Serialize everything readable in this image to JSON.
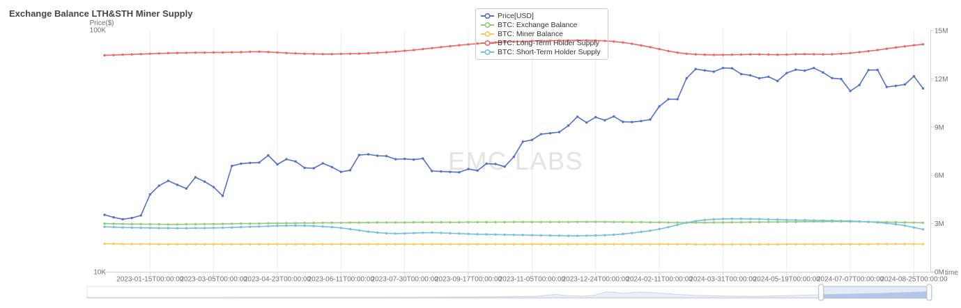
{
  "title": "Exchange Balance LTH&STH Miner Supply",
  "watermark": "EMC LABS",
  "left_axis": {
    "name": "Price($)",
    "scale": "log",
    "labels": [
      {
        "text": "100K",
        "value": 100000
      },
      {
        "text": "10K",
        "value": 10000
      }
    ]
  },
  "right_axis": {
    "labels": [
      "15M",
      "12M",
      "9M",
      "6M",
      "3M",
      "0M"
    ],
    "values": [
      15,
      12,
      9,
      6,
      3,
      0
    ],
    "max": 15
  },
  "x_axis": {
    "name": "time",
    "tick_labels": [
      "2023-01-15T00:00:00",
      "2023-03-05T00:00:00",
      "2023-04-23T00:00:00",
      "2023-06-11T00:00:00",
      "2023-07-30T00:00:00",
      "2023-09-17T00:00:00",
      "2023-11-05T00:00:00",
      "2023-12-24T00:00:00",
      "2024-02-11T00:00:00",
      "2024-03-31T00:00:00",
      "2024-05-19T00:00:00",
      "2024-07-07T00:00:00",
      "2024-08-25T00:00:00"
    ],
    "tick_indices": [
      5,
      12,
      19,
      26,
      33,
      40,
      47,
      54,
      61,
      68,
      75,
      82,
      89
    ]
  },
  "chart_data": {
    "type": "line",
    "x_unit": "week",
    "x_range": [
      "2022-12-11",
      "2024-09-01"
    ],
    "point_count": 91,
    "grid": "vertical-only",
    "legend_position": "top-center",
    "series": [
      {
        "name": "Price[USD]",
        "color": "#5470c6",
        "axis": "left",
        "unit": "USD",
        "values": [
          17200,
          16800,
          16500,
          16700,
          17100,
          20900,
          22700,
          23800,
          22900,
          22100,
          24600,
          23600,
          22400,
          20600,
          27400,
          28000,
          28200,
          28300,
          30300,
          27800,
          29200,
          28600,
          26900,
          26800,
          28100,
          27100,
          25900,
          26300,
          30400,
          30600,
          30200,
          30100,
          29200,
          29300,
          29100,
          29400,
          26100,
          26000,
          25900,
          25800,
          26600,
          26200,
          28000,
          27900,
          27200,
          29900,
          34500,
          35100,
          37100,
          37400,
          37800,
          40200,
          43800,
          41400,
          43600,
          42300,
          43900,
          41700,
          41600,
          42000,
          42600,
          48300,
          51700,
          51700,
          63100,
          68900,
          68000,
          67200,
          69600,
          69400,
          65700,
          64900,
          63100,
          64000,
          61500,
          66300,
          68500,
          67800,
          69600,
          66700,
          63200,
          62700,
          55900,
          59200,
          68200,
          68300,
          58100,
          58700,
          59500,
          64300,
          57300
        ]
      },
      {
        "name": "BTC: Exchange Balance",
        "color": "#91cc75",
        "axis": "right",
        "unit": "M BTC",
        "values": [
          3.0,
          2.99,
          2.98,
          2.97,
          2.97,
          2.96,
          2.96,
          2.95,
          2.95,
          2.96,
          2.96,
          2.97,
          2.97,
          2.98,
          2.99,
          3.0,
          3.0,
          3.01,
          3.02,
          3.02,
          3.03,
          3.03,
          3.04,
          3.04,
          3.05,
          3.05,
          3.05,
          3.06,
          3.06,
          3.06,
          3.07,
          3.07,
          3.07,
          3.07,
          3.08,
          3.08,
          3.08,
          3.08,
          3.08,
          3.08,
          3.09,
          3.09,
          3.09,
          3.09,
          3.09,
          3.1,
          3.1,
          3.1,
          3.1,
          3.1,
          3.1,
          3.1,
          3.11,
          3.11,
          3.11,
          3.11,
          3.1,
          3.1,
          3.09,
          3.09,
          3.08,
          3.08,
          3.07,
          3.07,
          3.06,
          3.06,
          3.06,
          3.07,
          3.07,
          3.08,
          3.08,
          3.09,
          3.09,
          3.1,
          3.1,
          3.11,
          3.11,
          3.12,
          3.12,
          3.12,
          3.13,
          3.13,
          3.12,
          3.12,
          3.11,
          3.1,
          3.09,
          3.08,
          3.07,
          3.06,
          3.05
        ]
      },
      {
        "name": "BTC: Miner Balance",
        "color": "#fac858",
        "axis": "right",
        "unit": "M BTC",
        "values": [
          1.74,
          1.74,
          1.73,
          1.73,
          1.73,
          1.73,
          1.72,
          1.72,
          1.72,
          1.72,
          1.72,
          1.72,
          1.72,
          1.72,
          1.72,
          1.72,
          1.72,
          1.72,
          1.72,
          1.72,
          1.72,
          1.72,
          1.72,
          1.72,
          1.72,
          1.72,
          1.72,
          1.72,
          1.72,
          1.72,
          1.72,
          1.72,
          1.72,
          1.72,
          1.72,
          1.72,
          1.72,
          1.72,
          1.72,
          1.72,
          1.72,
          1.72,
          1.72,
          1.72,
          1.72,
          1.72,
          1.72,
          1.72,
          1.72,
          1.72,
          1.72,
          1.72,
          1.72,
          1.72,
          1.72,
          1.72,
          1.72,
          1.72,
          1.72,
          1.72,
          1.72,
          1.72,
          1.72,
          1.72,
          1.72,
          1.71,
          1.71,
          1.71,
          1.71,
          1.71,
          1.71,
          1.71,
          1.71,
          1.71,
          1.71,
          1.72,
          1.72,
          1.72,
          1.72,
          1.72,
          1.72,
          1.72,
          1.72,
          1.72,
          1.72,
          1.73,
          1.73,
          1.73,
          1.73,
          1.73,
          1.73
        ]
      },
      {
        "name": "BTC: Long-Term Holder Supply",
        "color": "#ee6666",
        "axis": "right",
        "unit": "M BTC",
        "values": [
          13.46,
          13.48,
          13.5,
          13.52,
          13.54,
          13.56,
          13.58,
          13.6,
          13.61,
          13.62,
          13.63,
          13.63,
          13.64,
          13.64,
          13.65,
          13.66,
          13.68,
          13.69,
          13.67,
          13.64,
          13.61,
          13.58,
          13.56,
          13.55,
          13.54,
          13.54,
          13.55,
          13.56,
          13.57,
          13.59,
          13.62,
          13.65,
          13.69,
          13.74,
          13.79,
          13.85,
          13.91,
          13.97,
          14.03,
          14.09,
          14.14,
          14.19,
          14.23,
          14.26,
          14.29,
          14.31,
          14.33,
          14.35,
          14.36,
          14.37,
          14.38,
          14.38,
          14.39,
          14.39,
          14.38,
          14.36,
          14.32,
          14.26,
          14.18,
          14.08,
          13.97,
          13.85,
          13.73,
          13.63,
          13.56,
          13.52,
          13.5,
          13.49,
          13.49,
          13.5,
          13.51,
          13.52,
          13.52,
          13.51,
          13.5,
          13.51,
          13.53,
          13.54,
          13.53,
          13.52,
          13.53,
          13.56,
          13.6,
          13.66,
          13.72,
          13.79,
          13.87,
          13.95,
          14.02,
          14.09,
          14.15
        ]
      },
      {
        "name": "BTC: Short-Term Holder Supply",
        "color": "#73c0de",
        "axis": "right",
        "unit": "M BTC",
        "values": [
          2.8,
          2.78,
          2.76,
          2.75,
          2.74,
          2.73,
          2.72,
          2.72,
          2.71,
          2.71,
          2.72,
          2.72,
          2.73,
          2.74,
          2.76,
          2.78,
          2.8,
          2.82,
          2.84,
          2.86,
          2.87,
          2.88,
          2.87,
          2.85,
          2.82,
          2.78,
          2.73,
          2.66,
          2.58,
          2.5,
          2.44,
          2.4,
          2.38,
          2.39,
          2.41,
          2.43,
          2.44,
          2.42,
          2.4,
          2.38,
          2.36,
          2.34,
          2.33,
          2.32,
          2.31,
          2.3,
          2.29,
          2.28,
          2.27,
          2.26,
          2.25,
          2.24,
          2.24,
          2.25,
          2.26,
          2.28,
          2.31,
          2.35,
          2.41,
          2.48,
          2.56,
          2.66,
          2.78,
          2.92,
          3.06,
          3.16,
          3.23,
          3.27,
          3.29,
          3.3,
          3.3,
          3.29,
          3.28,
          3.26,
          3.25,
          3.23,
          3.22,
          3.21,
          3.2,
          3.19,
          3.18,
          3.17,
          3.16,
          3.14,
          3.11,
          3.07,
          3.02,
          2.96,
          2.88,
          2.76,
          2.64
        ]
      }
    ]
  },
  "datazoom": {
    "window": [
      0.869,
      0.997
    ],
    "shadow": [
      [
        0,
        0.02
      ],
      [
        0.08,
        0.02
      ],
      [
        0.16,
        0.02
      ],
      [
        0.24,
        0.03
      ],
      [
        0.32,
        0.03
      ],
      [
        0.4,
        0.04
      ],
      [
        0.46,
        0.06
      ],
      [
        0.5,
        0.09
      ],
      [
        0.53,
        0.13
      ],
      [
        0.555,
        0.3
      ],
      [
        0.57,
        0.18
      ],
      [
        0.585,
        0.14
      ],
      [
        0.6,
        0.22
      ],
      [
        0.615,
        0.55
      ],
      [
        0.625,
        0.5
      ],
      [
        0.635,
        0.4
      ],
      [
        0.645,
        0.48
      ],
      [
        0.655,
        0.53
      ],
      [
        0.665,
        0.5
      ],
      [
        0.68,
        0.42
      ],
      [
        0.7,
        0.3
      ],
      [
        0.72,
        0.22
      ],
      [
        0.75,
        0.16
      ],
      [
        0.79,
        0.12
      ],
      [
        0.82,
        0.17
      ],
      [
        0.84,
        0.22
      ],
      [
        0.86,
        0.26
      ],
      [
        0.88,
        0.3
      ],
      [
        0.9,
        0.33
      ],
      [
        0.92,
        0.37
      ],
      [
        0.94,
        0.4
      ],
      [
        0.955,
        0.44
      ],
      [
        0.97,
        0.48
      ],
      [
        0.98,
        0.52
      ],
      [
        0.99,
        0.55
      ],
      [
        1,
        0.56
      ]
    ]
  },
  "colors": {
    "axis_label": "#6e7079",
    "axis_line": "#d0d3d8",
    "grid_line": "#ededed",
    "watermark": "#e3e3e3",
    "legend_text": "#333333",
    "zoom_fill": "rgba(135,163,216,0.22)",
    "zoom_shadow": "#aac0e8"
  }
}
